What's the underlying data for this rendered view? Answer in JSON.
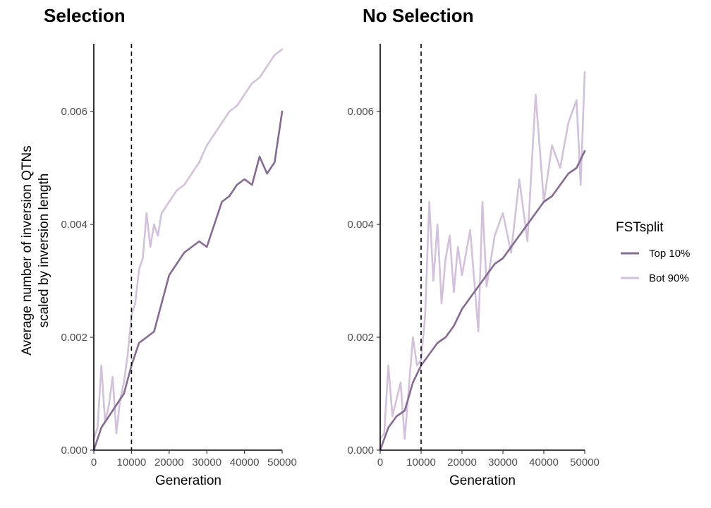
{
  "legend": {
    "title": "FSTsplit",
    "entries": [
      {
        "label": "Top 10%",
        "color": "#866a93"
      },
      {
        "label": "Bot 90%",
        "color": "#d3c1dc"
      }
    ]
  },
  "ylabel_lines": [
    "Average number of inversion QTNs",
    "scaled by inversion length"
  ],
  "chart_data": [
    {
      "type": "line",
      "title": "Selection",
      "xlabel": "Generation",
      "ylabel": "Average number of inversion QTNs scaled by inversion length",
      "xlim": [
        0,
        50000
      ],
      "ylim": [
        0,
        0.0072
      ],
      "xticks": [
        0,
        10000,
        20000,
        30000,
        40000,
        50000
      ],
      "xtick_labels": [
        "0",
        "10000",
        "20000",
        "30000",
        "40000",
        "50000"
      ],
      "yticks": [
        0,
        0.002,
        0.004,
        0.006
      ],
      "ytick_labels": [
        "0.000",
        "0.002",
        "0.004",
        "0.006"
      ],
      "vline": 10000,
      "grid": false,
      "legend_position": "right",
      "series": [
        {
          "name": "Top 10%",
          "color": "#866a93",
          "x": [
            0,
            2000,
            4000,
            6000,
            8000,
            10000,
            12000,
            14000,
            16000,
            18000,
            20000,
            22000,
            24000,
            26000,
            28000,
            30000,
            32000,
            34000,
            36000,
            38000,
            40000,
            42000,
            44000,
            46000,
            48000,
            50000
          ],
          "y": [
            0.0,
            0.0004,
            0.0006,
            0.0008,
            0.001,
            0.0015,
            0.0019,
            0.002,
            0.0021,
            0.0026,
            0.0031,
            0.0033,
            0.0035,
            0.0036,
            0.0037,
            0.0036,
            0.004,
            0.0044,
            0.0045,
            0.0047,
            0.0048,
            0.0047,
            0.0052,
            0.0049,
            0.0051,
            0.006
          ]
        },
        {
          "name": "Bot 90%",
          "color": "#d3c1dc",
          "x": [
            0,
            1000,
            2000,
            3000,
            4000,
            5000,
            6000,
            7000,
            8000,
            9000,
            10000,
            11000,
            12000,
            13000,
            14000,
            15000,
            16000,
            17000,
            18000,
            20000,
            22000,
            24000,
            26000,
            28000,
            30000,
            32000,
            34000,
            36000,
            38000,
            40000,
            42000,
            44000,
            46000,
            48000,
            50000
          ],
          "y": [
            0.0002,
            0.0004,
            0.0015,
            0.0005,
            0.0008,
            0.0013,
            0.0003,
            0.0009,
            0.0012,
            0.0017,
            0.0024,
            0.0026,
            0.0032,
            0.0034,
            0.0042,
            0.0036,
            0.004,
            0.0038,
            0.0042,
            0.0044,
            0.0046,
            0.0047,
            0.0049,
            0.0051,
            0.0054,
            0.0056,
            0.0058,
            0.006,
            0.0061,
            0.0063,
            0.0065,
            0.0066,
            0.0068,
            0.007,
            0.0071
          ]
        }
      ]
    },
    {
      "type": "line",
      "title": "No Selection",
      "xlabel": "Generation",
      "ylabel": "",
      "xlim": [
        0,
        50000
      ],
      "ylim": [
        0,
        0.0072
      ],
      "xticks": [
        0,
        10000,
        20000,
        30000,
        40000,
        50000
      ],
      "xtick_labels": [
        "0",
        "10000",
        "20000",
        "30000",
        "40000",
        "50000"
      ],
      "yticks": [
        0,
        0.002,
        0.004,
        0.006
      ],
      "ytick_labels": [
        "0.000",
        "0.002",
        "0.004",
        "0.006"
      ],
      "vline": 10000,
      "grid": false,
      "series": [
        {
          "name": "Top 10%",
          "color": "#866a93",
          "x": [
            0,
            2000,
            4000,
            6000,
            8000,
            10000,
            12000,
            14000,
            16000,
            18000,
            20000,
            22000,
            24000,
            26000,
            28000,
            30000,
            32000,
            34000,
            36000,
            38000,
            40000,
            42000,
            44000,
            46000,
            48000,
            50000
          ],
          "y": [
            0.0,
            0.0004,
            0.0006,
            0.0007,
            0.0012,
            0.0015,
            0.0017,
            0.0019,
            0.002,
            0.0022,
            0.0025,
            0.0027,
            0.0029,
            0.0031,
            0.0033,
            0.0034,
            0.0036,
            0.0038,
            0.004,
            0.0042,
            0.0044,
            0.0045,
            0.0047,
            0.0049,
            0.005,
            0.0053
          ]
        },
        {
          "name": "Bot 90%",
          "color": "#d3c1dc",
          "x": [
            0,
            1000,
            2000,
            3000,
            4000,
            5000,
            6000,
            7000,
            8000,
            9000,
            10000,
            11000,
            12000,
            13000,
            14000,
            15000,
            16000,
            17000,
            18000,
            19000,
            20000,
            22000,
            24000,
            25000,
            26000,
            28000,
            30000,
            32000,
            34000,
            36000,
            38000,
            40000,
            42000,
            44000,
            46000,
            48000,
            49000,
            50000
          ],
          "y": [
            0.0002,
            0.0003,
            0.0015,
            0.0006,
            0.0009,
            0.0012,
            0.0002,
            0.0011,
            0.002,
            0.0015,
            0.0016,
            0.0024,
            0.0044,
            0.003,
            0.004,
            0.0026,
            0.0034,
            0.0038,
            0.0028,
            0.0036,
            0.0031,
            0.0039,
            0.0021,
            0.0044,
            0.0029,
            0.0038,
            0.0042,
            0.0035,
            0.0048,
            0.0037,
            0.0063,
            0.0044,
            0.0054,
            0.005,
            0.0058,
            0.0062,
            0.0047,
            0.0067
          ]
        }
      ]
    }
  ]
}
